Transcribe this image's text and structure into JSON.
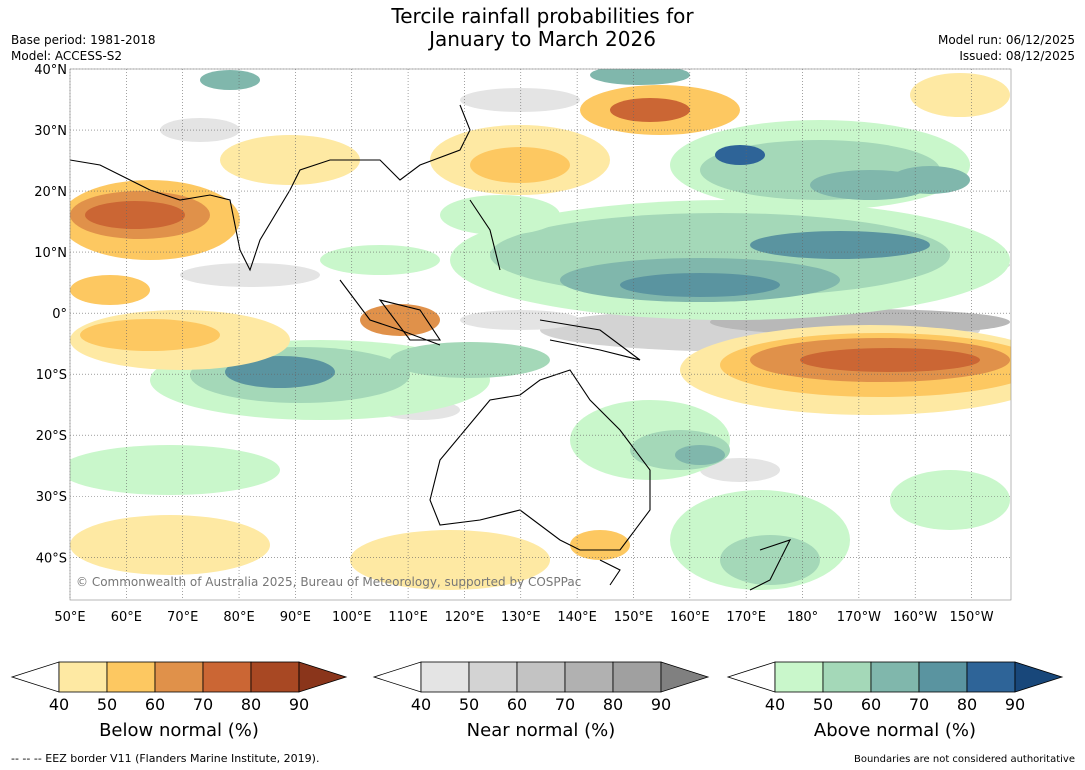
{
  "title": {
    "line1": "Tercile rainfall probabilities for",
    "line2": "January to March 2026"
  },
  "meta_left": {
    "base_period": "Base period: 1981-2018",
    "model": "Model: ACCESS-S2"
  },
  "meta_right": {
    "model_run": "Model run: 06/12/2025",
    "issued": "Issued: 08/12/2025"
  },
  "map": {
    "lat_labels": [
      "40°N",
      "30°N",
      "20°N",
      "10°N",
      "0°",
      "10°S",
      "20°S",
      "30°S",
      "40°S"
    ],
    "lat_values": [
      40,
      30,
      20,
      10,
      0,
      -10,
      -20,
      -30,
      -40
    ],
    "lon_labels": [
      "50°E",
      "60°E",
      "70°E",
      "80°E",
      "90°E",
      "100°E",
      "110°E",
      "120°E",
      "130°E",
      "140°E",
      "150°E",
      "160°E",
      "170°E",
      "180°",
      "170°W",
      "160°W",
      "150°W"
    ],
    "lon_values": [
      50,
      60,
      70,
      80,
      90,
      100,
      110,
      120,
      130,
      140,
      150,
      160,
      170,
      180,
      190,
      200,
      210
    ],
    "lon_range": [
      50,
      217
    ],
    "lat_range": [
      -47,
      40
    ],
    "copyright": "© Commonwealth of Australia 2025, Bureau of Meteorology, supported by COSPPac"
  },
  "colorbars": [
    {
      "title": "Below normal (%)",
      "ticks": [
        "40",
        "50",
        "60",
        "70",
        "80",
        "90"
      ],
      "colors": [
        "#ffffff",
        "#fee9a3",
        "#fdc861",
        "#e0914a",
        "#cb6634",
        "#a84823",
        "#8a351b"
      ]
    },
    {
      "title": "Near normal (%)",
      "ticks": [
        "40",
        "50",
        "60",
        "70",
        "80",
        "90"
      ],
      "colors": [
        "#ffffff",
        "#e4e4e4",
        "#d3d3d3",
        "#c3c3c3",
        "#b1b1b1",
        "#a0a0a0",
        "#808080"
      ]
    },
    {
      "title": "Above normal (%)",
      "ticks": [
        "40",
        "50",
        "60",
        "70",
        "80",
        "90"
      ],
      "colors": [
        "#ffffff",
        "#c9f7cb",
        "#a4d8b8",
        "#80b7ac",
        "#5a94a0",
        "#2e6498",
        "#18477a"
      ]
    }
  ],
  "footer": {
    "left": "--  --  -- EEZ border V11 (Flanders Marine Institute, 2019).",
    "right": "Boundaries are not considered authoritative"
  }
}
